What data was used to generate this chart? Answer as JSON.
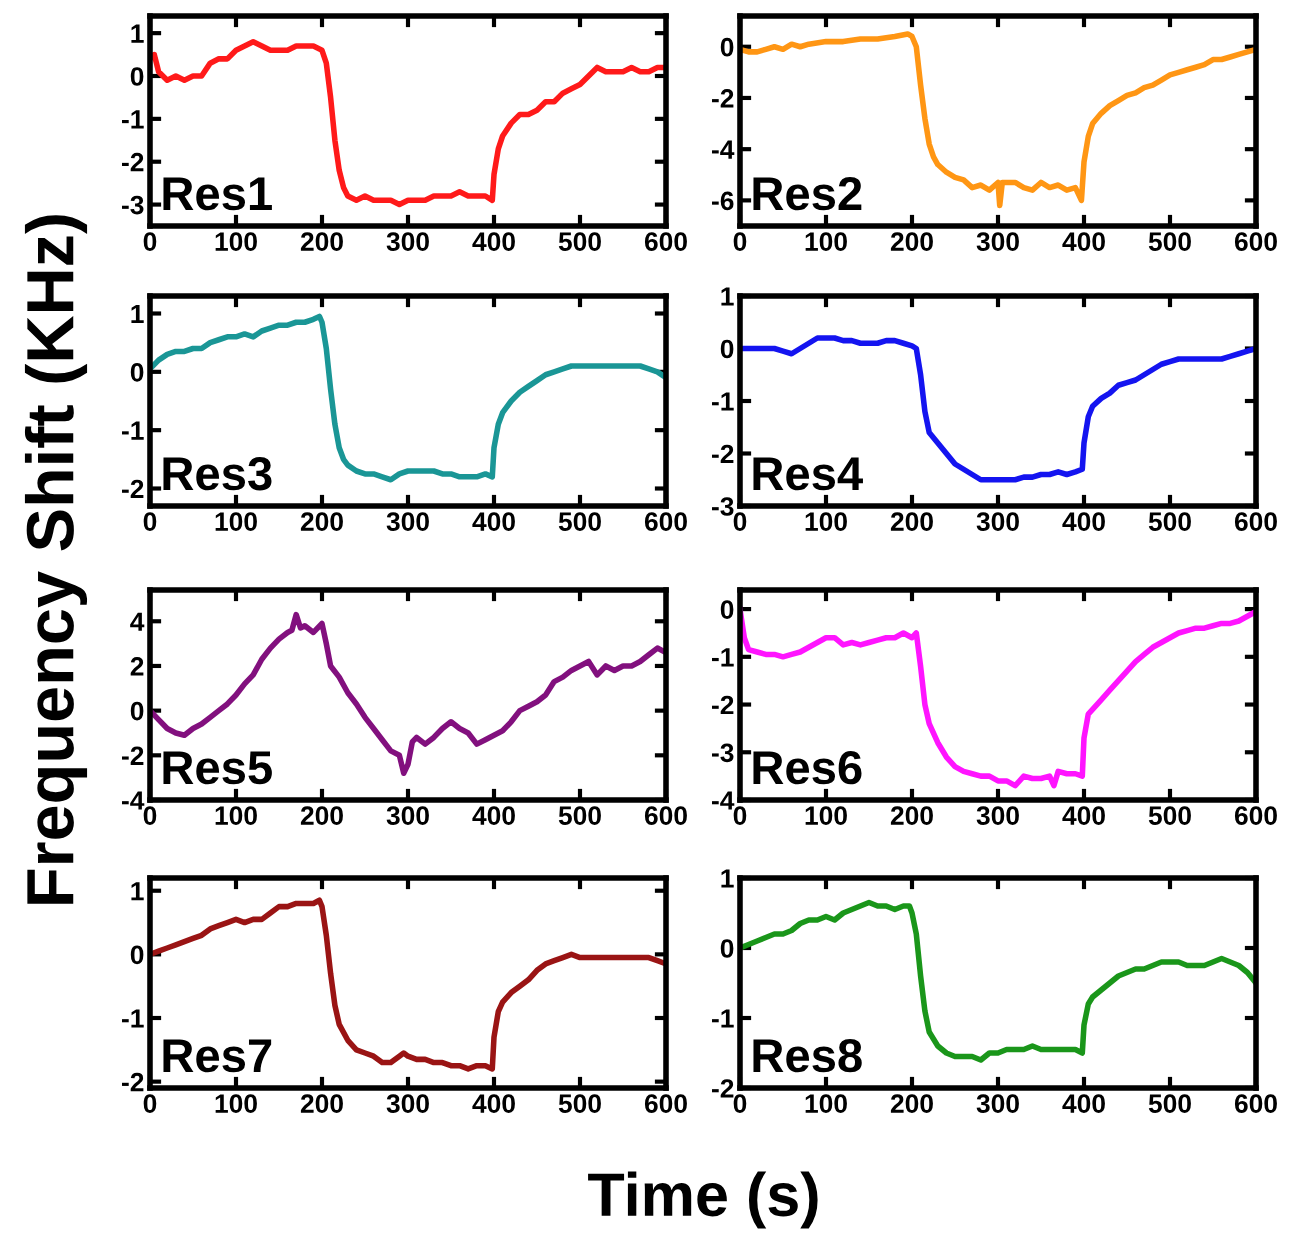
{
  "chart_data": [
    {
      "type": "line",
      "xlabel": "Time (s)",
      "ylabel": "Frequency Shift (KHz)",
      "annotations": [
        "Res1"
      ],
      "color": "#ff1a1a",
      "xlim": [
        0,
        600
      ],
      "xticks": [
        0,
        100,
        200,
        300,
        400,
        500,
        600
      ],
      "ylim": [
        -3.5,
        1.4
      ],
      "yticks": [
        -3,
        -2,
        -1,
        0,
        1
      ],
      "grid": false,
      "legend": false,
      "x": [
        0,
        5,
        10,
        20,
        30,
        40,
        50,
        60,
        70,
        80,
        90,
        100,
        110,
        120,
        130,
        140,
        150,
        160,
        170,
        180,
        190,
        200,
        205,
        210,
        215,
        220,
        225,
        230,
        240,
        250,
        260,
        270,
        280,
        290,
        300,
        310,
        320,
        330,
        340,
        350,
        360,
        370,
        380,
        390,
        398,
        400,
        405,
        410,
        420,
        430,
        440,
        450,
        460,
        470,
        480,
        490,
        500,
        510,
        520,
        530,
        540,
        550,
        560,
        570,
        580,
        590,
        600
      ],
      "values": [
        0.4,
        0.5,
        0.1,
        -0.1,
        0,
        -0.1,
        0,
        0,
        0.3,
        0.4,
        0.4,
        0.6,
        0.7,
        0.8,
        0.7,
        0.6,
        0.6,
        0.6,
        0.7,
        0.7,
        0.7,
        0.6,
        0.3,
        -0.5,
        -1.5,
        -2.2,
        -2.6,
        -2.8,
        -2.9,
        -2.8,
        -2.9,
        -2.9,
        -2.9,
        -3.0,
        -2.9,
        -2.9,
        -2.9,
        -2.8,
        -2.8,
        -2.8,
        -2.7,
        -2.8,
        -2.8,
        -2.8,
        -2.9,
        -2.3,
        -1.7,
        -1.4,
        -1.1,
        -0.9,
        -0.9,
        -0.8,
        -0.6,
        -0.6,
        -0.4,
        -0.3,
        -0.2,
        0,
        0.2,
        0.1,
        0.1,
        0.1,
        0.2,
        0.1,
        0.1,
        0.2,
        0.2
      ]
    },
    {
      "type": "line",
      "annotations": [
        "Res2"
      ],
      "color": "#ff9614",
      "xlim": [
        0,
        600
      ],
      "xticks": [
        0,
        100,
        200,
        300,
        400,
        500,
        600
      ],
      "ylim": [
        -7,
        1.2
      ],
      "yticks": [
        -6,
        -4,
        -2,
        0
      ],
      "grid": false,
      "legend": false,
      "x": [
        0,
        10,
        20,
        30,
        40,
        50,
        60,
        70,
        80,
        100,
        120,
        140,
        160,
        180,
        195,
        200,
        205,
        210,
        215,
        220,
        225,
        230,
        240,
        250,
        260,
        270,
        280,
        290,
        300,
        302,
        305,
        320,
        330,
        340,
        350,
        360,
        370,
        380,
        390,
        397,
        400,
        405,
        410,
        420,
        430,
        440,
        450,
        460,
        470,
        480,
        490,
        500,
        510,
        520,
        530,
        540,
        550,
        560,
        570,
        580,
        590,
        600
      ],
      "values": [
        -0.1,
        -0.2,
        -0.2,
        -0.1,
        0,
        -0.1,
        0.1,
        0,
        0.1,
        0.2,
        0.2,
        0.3,
        0.3,
        0.4,
        0.5,
        0.4,
        0,
        -1.5,
        -2.8,
        -3.8,
        -4.3,
        -4.6,
        -4.9,
        -5.1,
        -5.2,
        -5.5,
        -5.4,
        -5.6,
        -5.3,
        -6.2,
        -5.3,
        -5.3,
        -5.5,
        -5.6,
        -5.3,
        -5.5,
        -5.4,
        -5.6,
        -5.5,
        -6,
        -4.5,
        -3.5,
        -3,
        -2.6,
        -2.3,
        -2.1,
        -1.9,
        -1.8,
        -1.6,
        -1.5,
        -1.3,
        -1.1,
        -1,
        -0.9,
        -0.8,
        -0.7,
        -0.5,
        -0.5,
        -0.4,
        -0.3,
        -0.2,
        -0.1
      ]
    },
    {
      "type": "line",
      "annotations": [
        "Res3"
      ],
      "color": "#1a9696",
      "xlim": [
        0,
        600
      ],
      "xticks": [
        0,
        100,
        200,
        300,
        400,
        500,
        600
      ],
      "ylim": [
        -2.3,
        1.3
      ],
      "yticks": [
        -2,
        -1,
        0,
        1
      ],
      "grid": false,
      "legend": false,
      "x": [
        0,
        10,
        20,
        30,
        40,
        50,
        60,
        70,
        80,
        90,
        100,
        110,
        120,
        130,
        140,
        150,
        160,
        170,
        180,
        190,
        197,
        200,
        205,
        210,
        215,
        220,
        225,
        230,
        240,
        250,
        260,
        270,
        280,
        290,
        300,
        310,
        320,
        330,
        340,
        350,
        360,
        370,
        380,
        390,
        398,
        400,
        405,
        410,
        420,
        430,
        440,
        450,
        460,
        470,
        480,
        490,
        500,
        510,
        520,
        530,
        540,
        550,
        560,
        570,
        580,
        590,
        600
      ],
      "values": [
        0.05,
        0.2,
        0.3,
        0.35,
        0.35,
        0.4,
        0.4,
        0.5,
        0.55,
        0.6,
        0.6,
        0.65,
        0.6,
        0.7,
        0.75,
        0.8,
        0.8,
        0.85,
        0.85,
        0.9,
        0.95,
        0.85,
        0.4,
        -0.3,
        -0.9,
        -1.3,
        -1.5,
        -1.6,
        -1.7,
        -1.75,
        -1.75,
        -1.8,
        -1.85,
        -1.75,
        -1.7,
        -1.7,
        -1.7,
        -1.7,
        -1.75,
        -1.75,
        -1.8,
        -1.8,
        -1.8,
        -1.75,
        -1.8,
        -1.3,
        -0.9,
        -0.7,
        -0.5,
        -0.35,
        -0.25,
        -0.15,
        -0.05,
        0,
        0.05,
        0.1,
        0.1,
        0.1,
        0.1,
        0.1,
        0.1,
        0.1,
        0.1,
        0.1,
        0.05,
        0,
        -0.1
      ]
    },
    {
      "type": "line",
      "annotations": [
        "Res4"
      ],
      "color": "#1414f0",
      "xlim": [
        0,
        600
      ],
      "xticks": [
        0,
        100,
        200,
        300,
        400,
        500,
        600
      ],
      "ylim": [
        -3,
        1
      ],
      "yticks": [
        -3,
        -2,
        -1,
        0,
        1
      ],
      "grid": false,
      "legend": false,
      "x": [
        0,
        20,
        40,
        50,
        60,
        70,
        80,
        90,
        100,
        110,
        120,
        130,
        140,
        150,
        160,
        170,
        180,
        190,
        200,
        205,
        210,
        215,
        220,
        230,
        240,
        250,
        260,
        270,
        280,
        290,
        300,
        310,
        320,
        330,
        340,
        350,
        360,
        370,
        380,
        390,
        398,
        400,
        405,
        410,
        420,
        430,
        440,
        450,
        460,
        470,
        480,
        490,
        500,
        510,
        520,
        530,
        540,
        550,
        560,
        570,
        580,
        590,
        600
      ],
      "values": [
        0,
        0,
        0,
        -0.05,
        -0.1,
        0,
        0.1,
        0.2,
        0.2,
        0.2,
        0.15,
        0.15,
        0.1,
        0.1,
        0.1,
        0.15,
        0.15,
        0.1,
        0.05,
        0,
        -0.5,
        -1.2,
        -1.6,
        -1.8,
        -2,
        -2.2,
        -2.3,
        -2.4,
        -2.5,
        -2.5,
        -2.5,
        -2.5,
        -2.5,
        -2.45,
        -2.45,
        -2.4,
        -2.4,
        -2.35,
        -2.4,
        -2.35,
        -2.3,
        -1.8,
        -1.3,
        -1.1,
        -0.95,
        -0.85,
        -0.7,
        -0.65,
        -0.6,
        -0.5,
        -0.4,
        -0.3,
        -0.25,
        -0.2,
        -0.2,
        -0.2,
        -0.2,
        -0.2,
        -0.2,
        -0.15,
        -0.1,
        -0.05,
        0
      ]
    },
    {
      "type": "line",
      "annotations": [
        "Res5"
      ],
      "color": "#82107e",
      "xlim": [
        0,
        600
      ],
      "xticks": [
        0,
        100,
        200,
        300,
        400,
        500,
        600
      ],
      "ylim": [
        -4,
        5.4
      ],
      "yticks": [
        -4,
        -2,
        0,
        2,
        4
      ],
      "grid": false,
      "legend": false,
      "x": [
        0,
        5,
        10,
        20,
        30,
        40,
        50,
        60,
        70,
        80,
        90,
        100,
        110,
        120,
        130,
        140,
        150,
        160,
        165,
        170,
        175,
        180,
        190,
        200,
        205,
        210,
        220,
        230,
        240,
        250,
        260,
        270,
        280,
        290,
        295,
        300,
        305,
        310,
        320,
        330,
        340,
        350,
        360,
        370,
        380,
        390,
        400,
        410,
        420,
        430,
        440,
        450,
        460,
        470,
        480,
        490,
        500,
        510,
        520,
        530,
        540,
        550,
        560,
        570,
        580,
        590,
        600
      ],
      "values": [
        0,
        -0.2,
        -0.4,
        -0.8,
        -1,
        -1.1,
        -0.8,
        -0.6,
        -0.3,
        0,
        0.3,
        0.7,
        1.2,
        1.6,
        2.3,
        2.8,
        3.2,
        3.5,
        3.6,
        4.3,
        3.7,
        3.8,
        3.5,
        3.9,
        3,
        2,
        1.5,
        0.8,
        0.3,
        -0.3,
        -0.8,
        -1.3,
        -1.8,
        -2,
        -2.8,
        -2.4,
        -1.4,
        -1.2,
        -1.5,
        -1.2,
        -0.8,
        -0.5,
        -0.8,
        -1,
        -1.5,
        -1.3,
        -1.1,
        -0.9,
        -0.5,
        0,
        0.2,
        0.4,
        0.7,
        1.3,
        1.5,
        1.8,
        2,
        2.2,
        1.6,
        2,
        1.8,
        2,
        2,
        2.2,
        2.5,
        2.8,
        2.6
      ]
    },
    {
      "type": "line",
      "annotations": [
        "Res6"
      ],
      "color": "#ff14ff",
      "xlim": [
        0,
        600
      ],
      "xticks": [
        0,
        100,
        200,
        300,
        400,
        500,
        600
      ],
      "ylim": [
        -4,
        0.4
      ],
      "yticks": [
        -4,
        -3,
        -2,
        -1,
        0
      ],
      "grid": false,
      "legend": false,
      "x": [
        0,
        5,
        10,
        20,
        30,
        40,
        50,
        60,
        70,
        80,
        90,
        100,
        110,
        120,
        130,
        140,
        150,
        160,
        170,
        180,
        190,
        200,
        205,
        210,
        215,
        220,
        230,
        240,
        250,
        260,
        270,
        280,
        290,
        300,
        310,
        320,
        330,
        340,
        350,
        360,
        365,
        370,
        380,
        390,
        398,
        400,
        405,
        410,
        420,
        430,
        440,
        450,
        460,
        470,
        480,
        490,
        500,
        510,
        520,
        530,
        540,
        550,
        560,
        570,
        580,
        590,
        600
      ],
      "values": [
        0,
        -0.6,
        -0.85,
        -0.9,
        -0.95,
        -0.95,
        -1,
        -0.95,
        -0.9,
        -0.8,
        -0.7,
        -0.6,
        -0.6,
        -0.75,
        -0.7,
        -0.75,
        -0.7,
        -0.65,
        -0.6,
        -0.6,
        -0.5,
        -0.6,
        -0.5,
        -1.2,
        -2,
        -2.4,
        -2.8,
        -3.1,
        -3.3,
        -3.4,
        -3.45,
        -3.5,
        -3.5,
        -3.6,
        -3.6,
        -3.7,
        -3.5,
        -3.55,
        -3.55,
        -3.5,
        -3.7,
        -3.4,
        -3.45,
        -3.45,
        -3.5,
        -2.7,
        -2.2,
        -2.1,
        -1.9,
        -1.7,
        -1.5,
        -1.3,
        -1.1,
        -0.95,
        -0.8,
        -0.7,
        -0.6,
        -0.5,
        -0.45,
        -0.4,
        -0.4,
        -0.35,
        -0.3,
        -0.3,
        -0.25,
        -0.15,
        -0.05
      ]
    },
    {
      "type": "line",
      "annotations": [
        "Res7"
      ],
      "color": "#9a1414",
      "xlim": [
        0,
        600
      ],
      "xticks": [
        0,
        100,
        200,
        300,
        400,
        500,
        600
      ],
      "ylim": [
        -2.1,
        1.2
      ],
      "yticks": [
        -2,
        -1,
        0,
        1
      ],
      "grid": false,
      "legend": false,
      "x": [
        0,
        10,
        20,
        30,
        40,
        50,
        60,
        70,
        80,
        90,
        100,
        110,
        120,
        130,
        140,
        150,
        160,
        170,
        180,
        190,
        197,
        200,
        205,
        210,
        215,
        220,
        230,
        240,
        250,
        260,
        270,
        280,
        290,
        295,
        300,
        310,
        320,
        330,
        340,
        350,
        360,
        370,
        380,
        390,
        398,
        400,
        405,
        410,
        420,
        430,
        440,
        450,
        460,
        470,
        480,
        490,
        500,
        510,
        520,
        530,
        540,
        550,
        560,
        570,
        580,
        590,
        600
      ],
      "values": [
        0,
        0.05,
        0.1,
        0.15,
        0.2,
        0.25,
        0.3,
        0.4,
        0.45,
        0.5,
        0.55,
        0.5,
        0.55,
        0.55,
        0.65,
        0.75,
        0.75,
        0.8,
        0.8,
        0.8,
        0.85,
        0.75,
        0.3,
        -0.3,
        -0.8,
        -1.1,
        -1.35,
        -1.5,
        -1.55,
        -1.6,
        -1.7,
        -1.7,
        -1.6,
        -1.55,
        -1.6,
        -1.65,
        -1.65,
        -1.7,
        -1.7,
        -1.75,
        -1.75,
        -1.8,
        -1.75,
        -1.75,
        -1.8,
        -1.3,
        -0.9,
        -0.75,
        -0.6,
        -0.5,
        -0.4,
        -0.25,
        -0.15,
        -0.1,
        -0.05,
        0,
        -0.05,
        -0.05,
        -0.05,
        -0.05,
        -0.05,
        -0.05,
        -0.05,
        -0.05,
        -0.05,
        -0.1,
        -0.15
      ]
    },
    {
      "type": "line",
      "annotations": [
        "Res8"
      ],
      "color": "#1a961a",
      "xlim": [
        0,
        600
      ],
      "xticks": [
        0,
        100,
        200,
        300,
        400,
        500,
        600
      ],
      "ylim": [
        -2,
        1
      ],
      "yticks": [
        -2,
        -1,
        0,
        1
      ],
      "grid": false,
      "legend": false,
      "x": [
        0,
        10,
        20,
        30,
        40,
        50,
        60,
        70,
        80,
        90,
        100,
        110,
        120,
        130,
        140,
        150,
        160,
        170,
        180,
        190,
        197,
        200,
        205,
        210,
        215,
        220,
        230,
        240,
        250,
        260,
        270,
        280,
        290,
        300,
        310,
        320,
        330,
        340,
        350,
        360,
        370,
        380,
        390,
        398,
        400,
        405,
        410,
        420,
        430,
        440,
        450,
        460,
        470,
        480,
        490,
        500,
        510,
        520,
        530,
        540,
        550,
        560,
        570,
        580,
        590,
        600
      ],
      "values": [
        0,
        0.05,
        0.1,
        0.15,
        0.2,
        0.2,
        0.25,
        0.35,
        0.4,
        0.4,
        0.45,
        0.4,
        0.5,
        0.55,
        0.6,
        0.65,
        0.6,
        0.6,
        0.55,
        0.6,
        0.6,
        0.5,
        0.2,
        -0.4,
        -0.9,
        -1.2,
        -1.4,
        -1.5,
        -1.55,
        -1.55,
        -1.55,
        -1.6,
        -1.5,
        -1.5,
        -1.45,
        -1.45,
        -1.45,
        -1.4,
        -1.45,
        -1.45,
        -1.45,
        -1.45,
        -1.45,
        -1.5,
        -1.1,
        -0.8,
        -0.7,
        -0.6,
        -0.5,
        -0.4,
        -0.35,
        -0.3,
        -0.3,
        -0.25,
        -0.2,
        -0.2,
        -0.2,
        -0.25,
        -0.25,
        -0.25,
        -0.2,
        -0.15,
        -0.2,
        -0.25,
        -0.35,
        -0.5
      ]
    }
  ]
}
